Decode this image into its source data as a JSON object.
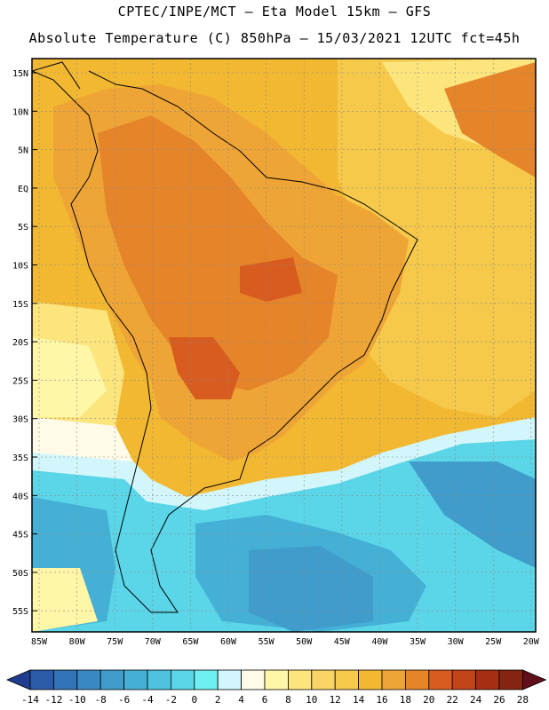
{
  "header": {
    "line1": "CPTEC/INPE/MCT –  Eta Model 15km – GFS",
    "line2": "Absolute Temperature (C) 850hPa – 15/03/2021 12UTC fct=45h"
  },
  "map": {
    "lat_labels": [
      "15N",
      "10N",
      "5N",
      "EQ",
      "5S",
      "10S",
      "15S",
      "20S",
      "25S",
      "30S",
      "35S",
      "40S",
      "45S",
      "50S",
      "55S"
    ],
    "lon_labels": [
      "85W",
      "80W",
      "75W",
      "70W",
      "65W",
      "60W",
      "55W",
      "50W",
      "45W",
      "40W",
      "35W",
      "30W",
      "25W",
      "20W"
    ],
    "colors": {
      "ocean_cool": "#4fb0d8",
      "ocean_mid": "#5fd3e6",
      "ocean_deep": "#3b96c8",
      "pale": "#fdf7c8",
      "light_yellow": "#fde57e",
      "yellow": "#f6c94a",
      "orange": "#eea535",
      "dark_orange": "#e08c2a",
      "hot": "#c96a22",
      "coast": "#000000",
      "grid": "#888888"
    }
  },
  "colorbar": {
    "labels": [
      "-14",
      "-12",
      "-10",
      "-8",
      "-6",
      "-4",
      "-2",
      "0",
      "2",
      "4",
      "6",
      "8",
      "10",
      "12",
      "14",
      "16",
      "18",
      "20",
      "22",
      "24",
      "26",
      "28"
    ],
    "colors": [
      "#1f3c8f",
      "#2a5aa8",
      "#3174b7",
      "#3a88c2",
      "#3f9ccb",
      "#45b0d6",
      "#4ec2df",
      "#5ad6e8",
      "#6fefef",
      "#d2f6fb",
      "#fffbe8",
      "#fff6a8",
      "#fde57e",
      "#f8d465",
      "#f6c94a",
      "#f3b832",
      "#eea535",
      "#e6842a",
      "#d85c1f",
      "#c04418",
      "#a52e13",
      "#842512",
      "#610f1a"
    ]
  }
}
